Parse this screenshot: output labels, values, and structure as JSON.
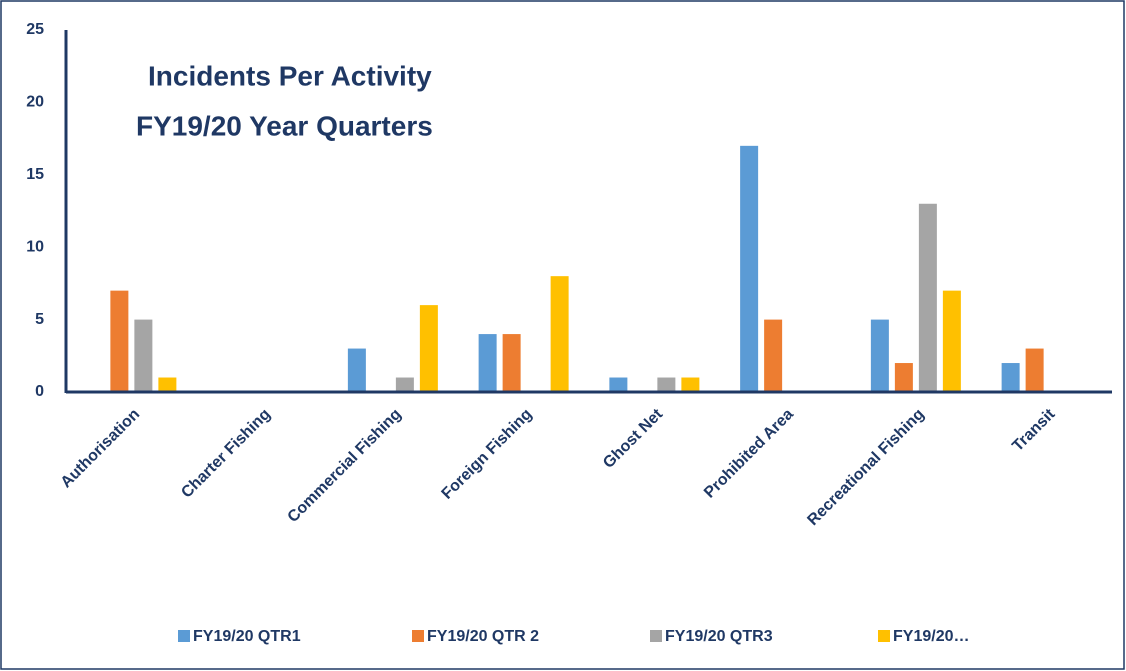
{
  "chart_data": {
    "type": "bar",
    "title": [
      "Incidents Per Activity",
      "FY19/20 Year Quarters"
    ],
    "categories": [
      "Authorisation",
      "Charter Fishing",
      "Commercial Fishing",
      "Foreign Fishing",
      "Ghost Net",
      "Prohibited Area",
      "Recreational Fishing",
      "Transit"
    ],
    "series": [
      {
        "name": "FY19/20 QTR1",
        "color": "#5b9bd5",
        "values": [
          0,
          0,
          3,
          4,
          1,
          17,
          5,
          2
        ]
      },
      {
        "name": "FY19/20 QTR 2",
        "color": "#ed7d31",
        "values": [
          7,
          0,
          0,
          4,
          0,
          5,
          2,
          3
        ]
      },
      {
        "name": "FY19/20 QTR3",
        "color": "#a5a5a5",
        "values": [
          5,
          0,
          1,
          0,
          1,
          0,
          13,
          0
        ]
      },
      {
        "name": "FY19/20…",
        "color": "#ffc000",
        "values": [
          1,
          0,
          6,
          8,
          1,
          0,
          7,
          0
        ]
      }
    ],
    "ylim": [
      0,
      25
    ],
    "yticks": [
      0,
      5,
      10,
      15,
      20,
      25
    ],
    "grid": false,
    "legend": "bottom"
  }
}
